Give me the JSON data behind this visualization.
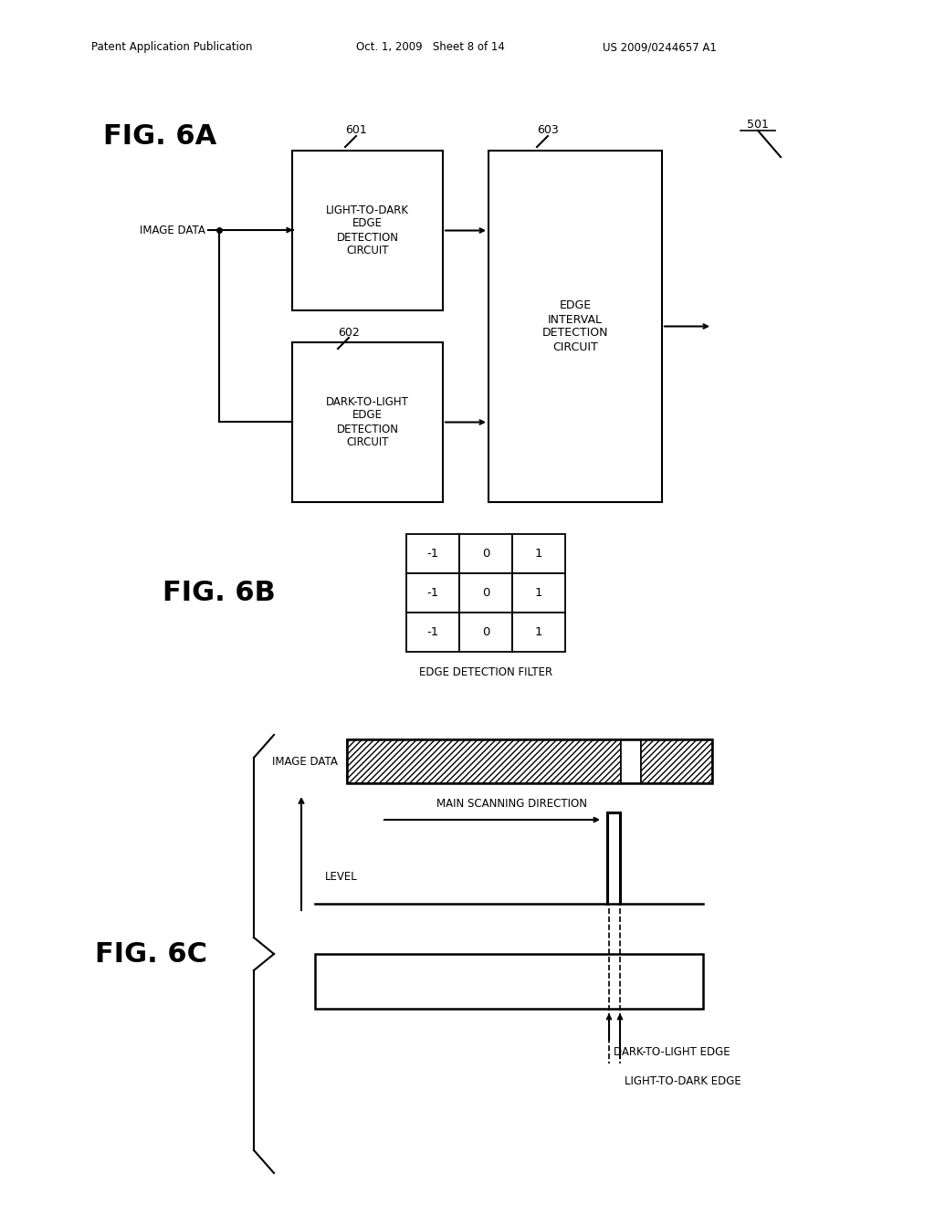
{
  "bg_color": "#ffffff",
  "header_left": "Patent Application Publication",
  "header_mid": "Oct. 1, 2009   Sheet 8 of 14",
  "header_right": "US 2009/0244657 A1",
  "fig6a_label": "FIG. 6A",
  "fig6b_label": "FIG. 6B",
  "fig6c_label": "FIG. 6C",
  "box601_text": "LIGHT-TO-DARK\nEDGE\nDETECTION\nCIRCUIT",
  "box602_text": "DARK-TO-LIGHT\nEDGE\nDETECTION\nCIRCUIT",
  "box603_text": "EDGE\nINTERVAL\nDETECTION\nCIRCUIT",
  "label_601": "601",
  "label_602": "602",
  "label_603": "603",
  "label_501": "501",
  "image_data_label": "IMAGE DATA",
  "main_scan_label": "MAIN SCANNING DIRECTION",
  "level_label": "LEVEL",
  "dark_to_light_label": "DARK-TO-LIGHT EDGE",
  "light_to_dark_label": "LIGHT-TO-DARK EDGE",
  "edge_detection_filter_label": "EDGE DETECTION FILTER",
  "filter_values": [
    [
      "-1",
      "0",
      "1"
    ],
    [
      "-1",
      "0",
      "1"
    ],
    [
      "-1",
      "0",
      "1"
    ]
  ]
}
